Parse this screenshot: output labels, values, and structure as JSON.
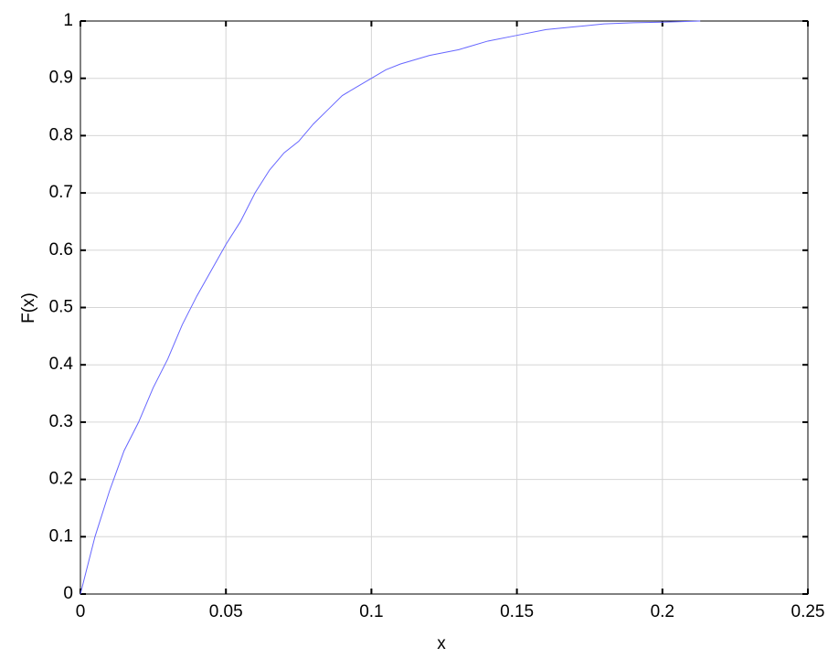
{
  "chart_data": {
    "type": "line",
    "xlabel": "x",
    "ylabel": "F(x)",
    "x": [
      0,
      0.002,
      0.005,
      0.01,
      0.015,
      0.02,
      0.025,
      0.03,
      0.035,
      0.04,
      0.045,
      0.05,
      0.055,
      0.06,
      0.065,
      0.07,
      0.075,
      0.08,
      0.085,
      0.09,
      0.095,
      0.1,
      0.105,
      0.11,
      0.12,
      0.13,
      0.14,
      0.15,
      0.16,
      0.17,
      0.18,
      0.19,
      0.2,
      0.213
    ],
    "values": [
      0,
      0.04,
      0.1,
      0.18,
      0.25,
      0.3,
      0.36,
      0.41,
      0.47,
      0.52,
      0.565,
      0.61,
      0.65,
      0.7,
      0.74,
      0.77,
      0.79,
      0.82,
      0.845,
      0.87,
      0.885,
      0.9,
      0.915,
      0.925,
      0.94,
      0.95,
      0.965,
      0.975,
      0.985,
      0.99,
      0.995,
      0.997,
      0.998,
      1
    ],
    "color": "#6666ff",
    "xlim": [
      0,
      0.25
    ],
    "xticks": [
      0,
      0.05,
      0.1,
      0.15,
      0.2,
      0.25
    ],
    "ylim": [
      0,
      1
    ],
    "yticks": [
      0,
      0.1,
      0.2,
      0.3,
      0.4,
      0.5,
      0.6,
      0.7,
      0.8,
      0.9,
      1
    ],
    "grid": true
  }
}
